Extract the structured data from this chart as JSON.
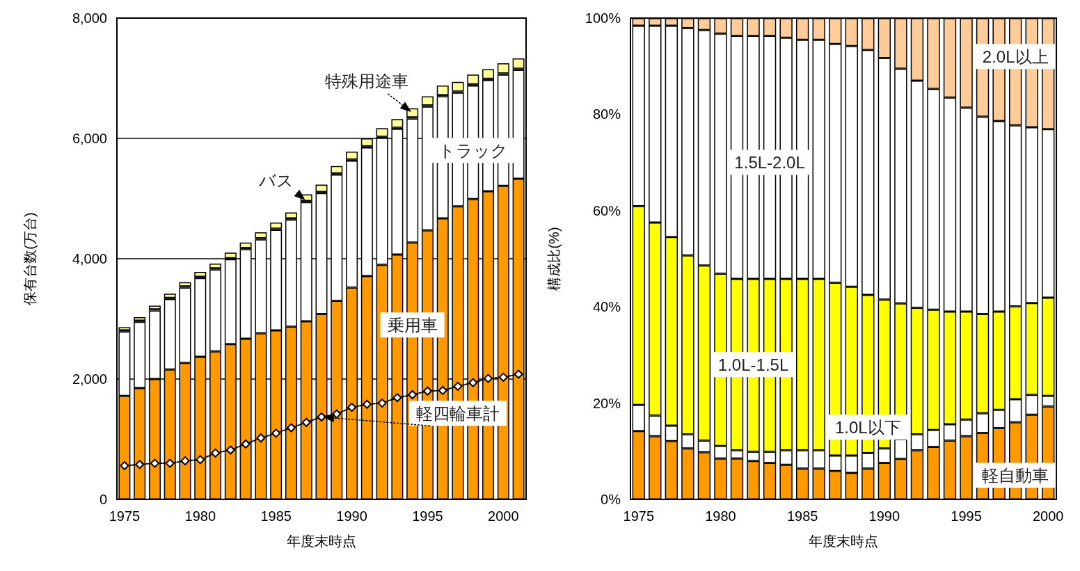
{
  "chart_data": [
    {
      "type": "bar",
      "stacked": true,
      "xlabel": "年度末時点",
      "ylabel": "保有台数(万台)",
      "categories": [
        "1975",
        null,
        null,
        null,
        null,
        "1980",
        null,
        null,
        null,
        null,
        "1985",
        null,
        null,
        null,
        null,
        "1990",
        null,
        null,
        null,
        null,
        "1995",
        null,
        null,
        null,
        null,
        "2000",
        null
      ],
      "ylim": [
        0,
        8000
      ],
      "yticks": [
        0,
        {
          "value": 2000,
          "label": "2,000"
        },
        {
          "value": 4000,
          "label": "4,000"
        },
        {
          "value": 6000,
          "label": "6,000"
        },
        {
          "value": 8000,
          "label": "8,000"
        }
      ],
      "grid": "y",
      "series": [
        {
          "name": "乗用車",
          "color": "#ff9900",
          "values": [
            1720,
            1850,
            2000,
            2160,
            2270,
            2370,
            2460,
            2580,
            2670,
            2760,
            2810,
            2870,
            2960,
            3080,
            3300,
            3520,
            3710,
            3900,
            4070,
            4270,
            4470,
            4670,
            4870,
            4990,
            5120,
            5210,
            5330
          ]
        },
        {
          "name": "トラック",
          "color": "#ffffff",
          "values": [
            1070,
            1100,
            1140,
            1170,
            1250,
            1310,
            1360,
            1410,
            1490,
            1560,
            1670,
            1780,
            1980,
            2010,
            2100,
            2110,
            2140,
            2110,
            2090,
            2060,
            2060,
            2030,
            1890,
            1890,
            1850,
            1850,
            1810
          ]
        },
        {
          "name": "バス",
          "color": "#000000",
          "values": [
            20,
            20,
            20,
            20,
            20,
            20,
            20,
            20,
            20,
            20,
            20,
            20,
            20,
            20,
            20,
            20,
            20,
            20,
            20,
            20,
            20,
            20,
            20,
            20,
            20,
            20,
            20
          ]
        },
        {
          "name": "特殊用途車",
          "color": "#ffff99",
          "values": [
            50,
            60,
            60,
            70,
            70,
            80,
            80,
            90,
            90,
            100,
            100,
            100,
            110,
            120,
            120,
            130,
            130,
            140,
            140,
            150,
            150,
            160,
            160,
            160,
            160,
            170,
            170
          ]
        },
        {
          "name": "軽四輪車計",
          "type": "line",
          "color": "#000000",
          "marker": "diamond",
          "line_style": "dotted",
          "values": [
            560,
            580,
            600,
            600,
            640,
            660,
            770,
            820,
            920,
            1020,
            1100,
            1190,
            1280,
            1370,
            1420,
            1530,
            1580,
            1600,
            1690,
            1740,
            1800,
            1810,
            1880,
            1940,
            2010,
            2030,
            2080
          ]
        }
      ]
    },
    {
      "type": "bar",
      "stacked": true,
      "xlabel": "年度末時点",
      "ylabel": "構成比(%)",
      "categories": [
        "1975",
        null,
        null,
        null,
        null,
        "1980",
        null,
        null,
        null,
        null,
        "1985",
        null,
        null,
        null,
        null,
        "1990",
        null,
        null,
        null,
        null,
        "1995",
        null,
        null,
        null,
        null,
        "2000"
      ],
      "ylim": [
        0,
        100
      ],
      "yticks": [
        {
          "value": 0,
          "label": "0%"
        },
        {
          "value": 20,
          "label": "20%"
        },
        {
          "value": 40,
          "label": "40%"
        },
        {
          "value": 60,
          "label": "60%"
        },
        {
          "value": 80,
          "label": "80%"
        },
        {
          "value": 100,
          "label": "100%"
        }
      ],
      "grid": false,
      "series": [
        {
          "name": "軽自動車",
          "color": "#ff9900",
          "values": [
            14.2,
            13.1,
            12.1,
            10.6,
            9.8,
            8.5,
            8.5,
            8.0,
            7.6,
            7.2,
            6.4,
            6.4,
            5.9,
            5.5,
            6.4,
            7.6,
            8.4,
            10.2,
            10.9,
            12.2,
            13.1,
            13.8,
            14.8,
            16.0,
            17.6,
            19.3
          ]
        },
        {
          "name": "1.0L以下",
          "color": "#ffffff",
          "values": [
            5.4,
            4.3,
            3.2,
            2.9,
            2.4,
            2.6,
            1.7,
            1.9,
            2.3,
            3.0,
            3.8,
            3.8,
            3.2,
            3.6,
            3.2,
            3.0,
            4.1,
            3.3,
            3.5,
            3.4,
            3.5,
            4.1,
            3.8,
            4.8,
            4.1,
            2.2
          ]
        },
        {
          "name": "1.0L-1.5L",
          "color": "#ffff00",
          "values": [
            41.3,
            40.1,
            39.2,
            37.2,
            36.4,
            35.8,
            35.6,
            35.9,
            35.9,
            35.6,
            35.6,
            35.6,
            35.9,
            35.1,
            32.9,
            30.9,
            28.2,
            26.3,
            25.0,
            23.4,
            22.4,
            20.6,
            20.4,
            19.3,
            19.1,
            20.4
          ]
        },
        {
          "name": "1.5L-2.0L",
          "color": "#ffffff",
          "values": [
            37.5,
            40.9,
            43.9,
            47.2,
            48.9,
            49.9,
            50.5,
            50.5,
            50.5,
            50.1,
            49.7,
            49.7,
            49.6,
            50.0,
            50.9,
            50.2,
            48.8,
            47.2,
            45.9,
            44.5,
            42.4,
            41.0,
            39.6,
            37.6,
            36.5,
            35.0
          ]
        },
        {
          "name": "2.0L以上",
          "color": "#ffcc99",
          "values": [
            1.6,
            1.6,
            1.6,
            2.1,
            2.5,
            3.2,
            3.7,
            3.7,
            3.7,
            4.1,
            4.5,
            4.5,
            5.4,
            5.8,
            6.6,
            8.3,
            10.5,
            13.0,
            14.7,
            16.5,
            18.6,
            20.5,
            21.4,
            22.3,
            22.7,
            23.1
          ]
        }
      ]
    }
  ]
}
